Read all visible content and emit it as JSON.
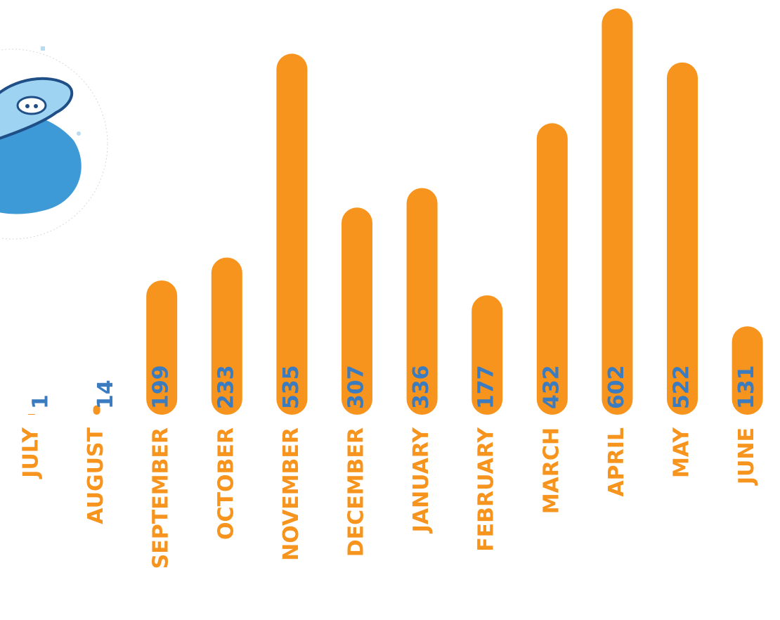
{
  "chart_data": {
    "type": "bar",
    "categories": [
      "JULY",
      "AUGUST",
      "SEPTEMBER",
      "OCTOBER",
      "NOVEMBER",
      "DECEMBER",
      "JANUARY",
      "FEBRUARY",
      "MARCH",
      "APRIL",
      "MAY",
      "JUNE"
    ],
    "values": [
      1,
      14,
      199,
      233,
      535,
      307,
      336,
      177,
      432,
      602,
      522,
      131
    ],
    "color": "#f7941d"
  }
}
